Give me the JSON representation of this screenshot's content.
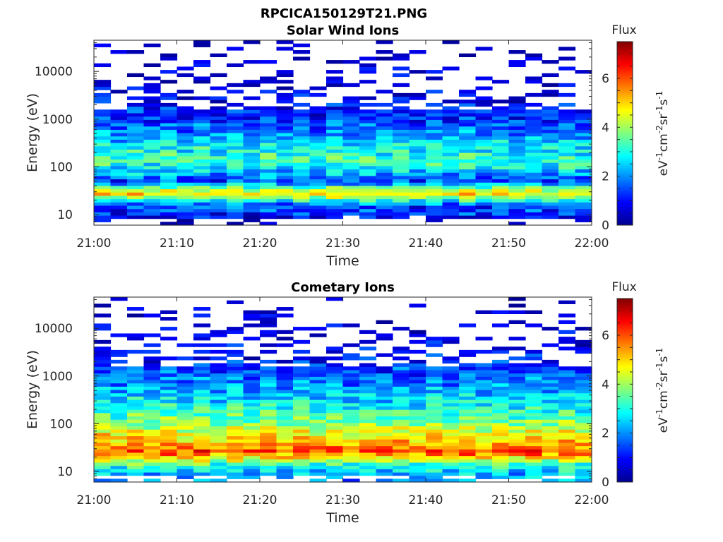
{
  "figure": {
    "title": "RPCICA150129T21.PNG"
  },
  "chart_data": [
    {
      "type": "heatmap",
      "title": "Solar Wind Ions",
      "xlabel": "Time",
      "ylabel": "Energy (eV)",
      "x_range": [
        "21:00",
        "22:00"
      ],
      "x_ticks": [
        "21:00",
        "21:10",
        "21:20",
        "21:30",
        "21:40",
        "21:50",
        "22:00"
      ],
      "y_scale": "log",
      "y_range": [
        6,
        45000
      ],
      "y_ticks": [
        10,
        100,
        1000,
        10000
      ],
      "y_tick_labels": [
        "10",
        "100",
        "1000",
        "10000"
      ],
      "colorbar": {
        "title": "Flux",
        "label": "eV-1cm-2sr-1s-1",
        "range": [
          0,
          7.5
        ],
        "ticks": [
          0,
          2,
          4,
          6
        ],
        "tick_labels": [
          "0",
          "2",
          "4",
          "6"
        ],
        "colormap": "jet"
      },
      "time_bins": 30,
      "profile": [
        {
          "energy": 7,
          "flux": 0.2
        },
        {
          "energy": 10,
          "flux": 1.4
        },
        {
          "energy": 16,
          "flux": 1.6
        },
        {
          "energy": 21,
          "flux": 3.6
        },
        {
          "energy": 28,
          "flux": 5.0
        },
        {
          "energy": 35,
          "flux": 4.0
        },
        {
          "energy": 50,
          "flux": 1.6
        },
        {
          "energy": 80,
          "flux": 2.6
        },
        {
          "energy": 130,
          "flux": 3.4
        },
        {
          "energy": 250,
          "flux": 3.0
        },
        {
          "energy": 500,
          "flux": 2.2
        },
        {
          "energy": 1000,
          "flux": 1.5
        },
        {
          "energy": 2000,
          "flux": 1.1
        },
        {
          "energy": 5000,
          "flux": 0.6
        },
        {
          "energy": 45000,
          "flux": 0.3
        }
      ]
    },
    {
      "type": "heatmap",
      "title": "Cometary Ions",
      "xlabel": "Time",
      "ylabel": "Energy (eV)",
      "x_range": [
        "21:00",
        "22:00"
      ],
      "x_ticks": [
        "21:00",
        "21:10",
        "21:20",
        "21:30",
        "21:40",
        "21:50",
        "22:00"
      ],
      "y_scale": "log",
      "y_range": [
        6,
        45000
      ],
      "y_ticks": [
        10,
        100,
        1000,
        10000
      ],
      "y_tick_labels": [
        "10",
        "100",
        "1000",
        "10000"
      ],
      "colorbar": {
        "title": "Flux",
        "label": "eV-1cm-2sr-1s-1",
        "range": [
          0,
          7.5
        ],
        "ticks": [
          0,
          2,
          4,
          6
        ],
        "tick_labels": [
          "0",
          "2",
          "4",
          "6"
        ],
        "colormap": "jet"
      },
      "time_bins": 30,
      "profile": [
        {
          "energy": 7,
          "flux": 2.2
        },
        {
          "energy": 10,
          "flux": 2.6
        },
        {
          "energy": 15,
          "flux": 3.6
        },
        {
          "energy": 20,
          "flux": 5.2
        },
        {
          "energy": 27,
          "flux": 6.2
        },
        {
          "energy": 40,
          "flux": 5.4
        },
        {
          "energy": 70,
          "flux": 4.6
        },
        {
          "energy": 120,
          "flux": 3.8
        },
        {
          "energy": 250,
          "flux": 3.0
        },
        {
          "energy": 500,
          "flux": 2.4
        },
        {
          "energy": 1000,
          "flux": 1.8
        },
        {
          "energy": 2500,
          "flux": 1.2
        },
        {
          "energy": 6000,
          "flux": 0.7
        },
        {
          "energy": 45000,
          "flux": 0.3
        }
      ]
    }
  ]
}
